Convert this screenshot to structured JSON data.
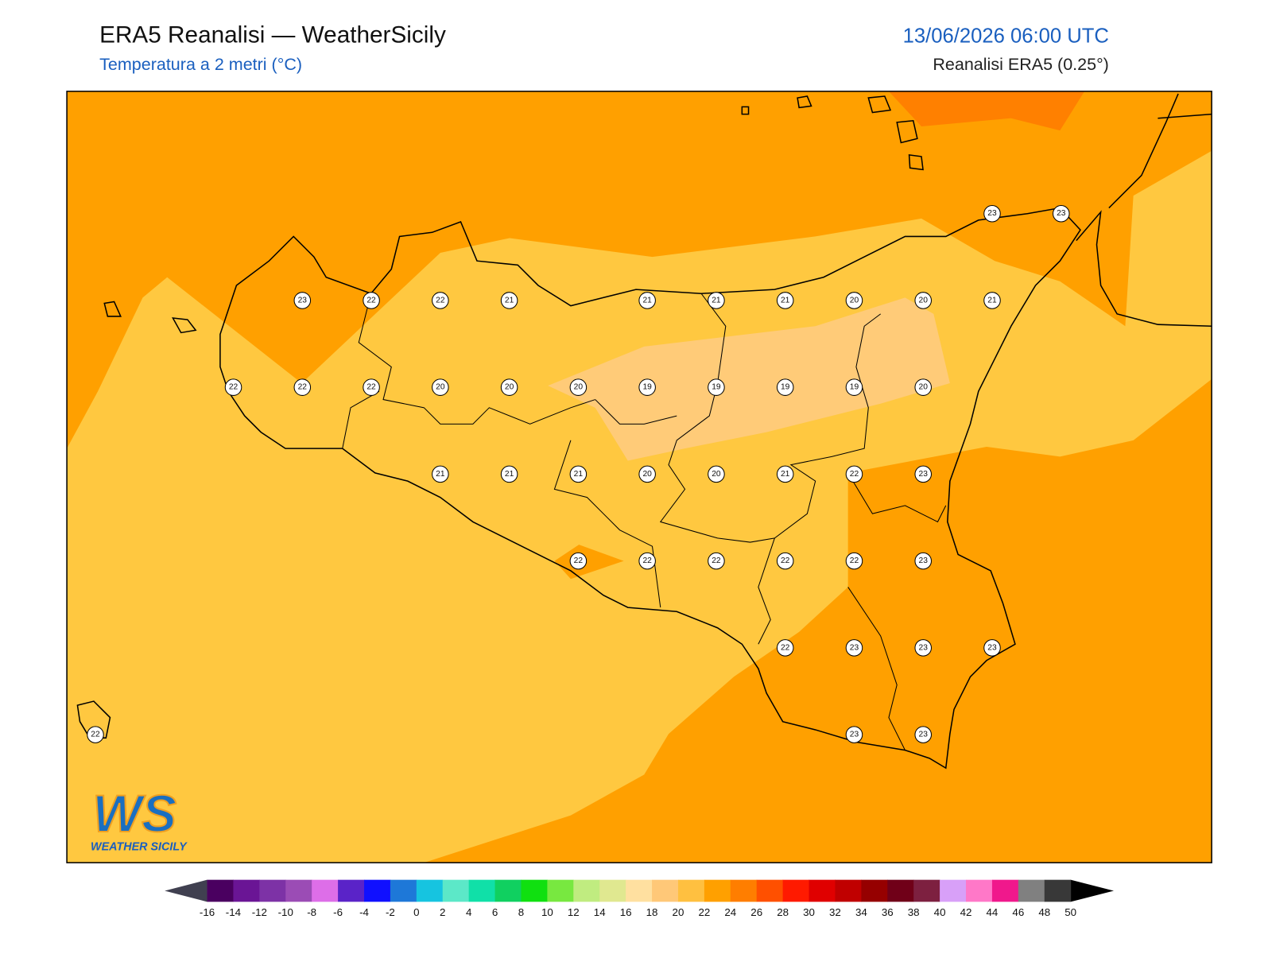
{
  "header": {
    "title": "ERA5 Reanalisi — WeatherSicily",
    "subtitle": "Temperatura a 2 metri (°C)",
    "date": "13/06/2026 06:00 UTC",
    "source": "Reanalisi ERA5 (0.25°)"
  },
  "logo": {
    "mark": "WS",
    "name": "WEATHER SICILY"
  },
  "station_grid": [
    [
      null,
      null,
      null,
      null,
      null,
      null,
      null,
      null,
      null,
      null,
      null,
      null,
      null,
      23,
      23
    ],
    [
      null,
      null,
      null,
      23,
      22,
      22,
      21,
      null,
      21,
      21,
      21,
      20,
      20,
      21,
      null
    ],
    [
      null,
      null,
      22,
      22,
      22,
      20,
      20,
      20,
      19,
      19,
      19,
      19,
      20,
      null,
      null
    ],
    [
      null,
      null,
      null,
      null,
      null,
      21,
      21,
      21,
      20,
      20,
      21,
      22,
      23,
      null,
      null
    ],
    [
      null,
      null,
      null,
      null,
      null,
      null,
      null,
      22,
      22,
      22,
      22,
      22,
      23,
      null,
      null
    ],
    [
      null,
      null,
      null,
      null,
      null,
      null,
      null,
      null,
      null,
      null,
      22,
      23,
      23,
      23,
      null
    ],
    [
      22,
      null,
      null,
      null,
      null,
      null,
      null,
      null,
      null,
      null,
      null,
      23,
      23,
      null,
      null
    ]
  ],
  "colorbar": {
    "ticks": [
      -16,
      -14,
      -12,
      -10,
      -8,
      -6,
      -4,
      -2,
      0,
      2,
      4,
      6,
      8,
      10,
      12,
      14,
      16,
      18,
      20,
      22,
      24,
      26,
      28,
      30,
      32,
      34,
      36,
      38,
      40,
      42,
      44,
      46,
      48,
      50
    ],
    "colors": [
      "#4a0060",
      "#6a1595",
      "#7d32a6",
      "#9b4cb5",
      "#dd6ee8",
      "#5a23c8",
      "#1010ff",
      "#1e78d8",
      "#16c4e0",
      "#5ce8c8",
      "#10e0a8",
      "#10d060",
      "#10e010",
      "#78e840",
      "#c0ec80",
      "#e0e890",
      "#ffe0a0",
      "#ffc878",
      "#ffc040",
      "#ffa000",
      "#ff7e00",
      "#ff5000",
      "#ff1a00",
      "#e00000",
      "#c00000",
      "#960000",
      "#700018",
      "#7d2040",
      "#d8a0f8",
      "#ff78c8",
      "#f0188c",
      "#808080",
      "#383838"
    ],
    "under_color": "#404050",
    "over_color": "#000000"
  }
}
